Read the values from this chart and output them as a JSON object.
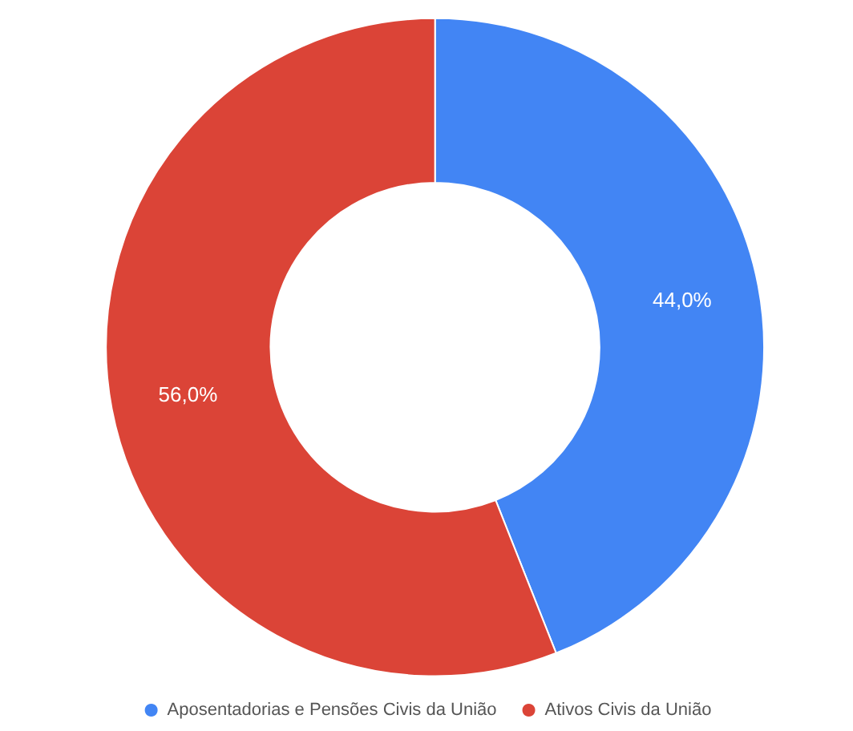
{
  "chart_data": {
    "type": "donut",
    "categories": [
      "Aposentadorias e Pensões Civis da União",
      "Ativos Civis da União"
    ],
    "values": [
      44,
      56
    ],
    "colors": [
      "#4285f4",
      "#db4437"
    ],
    "value_labels": [
      "44,0%",
      "56,0%"
    ],
    "legend": "bottom"
  }
}
